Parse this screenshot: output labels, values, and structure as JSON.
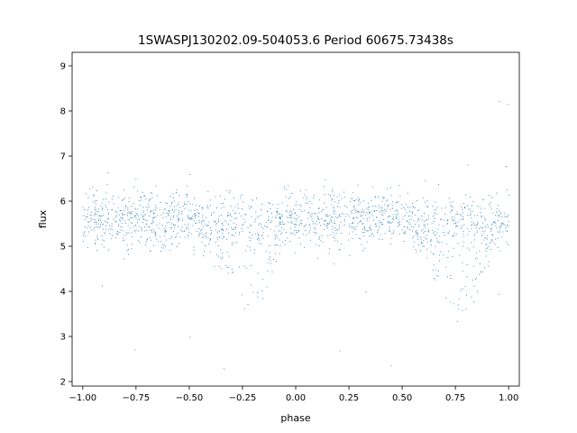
{
  "chart_data": {
    "type": "scatter",
    "title": "1SWASPJ130202.09-504053.6 Period 60675.73438s",
    "xlabel": "phase",
    "ylabel": "flux",
    "xlim": [
      -1.05,
      1.05
    ],
    "ylim": [
      1.9,
      9.3
    ],
    "xticks": [
      -1.0,
      -0.75,
      -0.5,
      -0.25,
      0.0,
      0.25,
      0.5,
      0.75,
      1.0
    ],
    "xtick_labels": [
      "−1.00",
      "−0.75",
      "−0.50",
      "−0.25",
      "0.00",
      "0.25",
      "0.50",
      "0.75",
      "1.00"
    ],
    "yticks": [
      2,
      3,
      4,
      5,
      6,
      7,
      8,
      9
    ],
    "ytick_labels": [
      "2",
      "3",
      "4",
      "5",
      "6",
      "7",
      "8",
      "9"
    ],
    "grid": false,
    "marker_color": "#1f77b4",
    "series": [
      {
        "description_of_distribution": "dense band of flux ~4.6-6.6 across full phase range; dips down to ~3.5 near phase -0.22 and 0.78",
        "x": [
          -1.0,
          -0.95,
          -0.9,
          -0.85,
          -0.8,
          -0.75,
          -0.7,
          -0.65,
          -0.6,
          -0.55,
          -0.5,
          -0.45,
          -0.4,
          -0.35,
          -0.3,
          -0.25,
          -0.22,
          -0.2,
          -0.15,
          -0.1,
          -0.05,
          0.0,
          0.05,
          0.1,
          0.15,
          0.2,
          0.25,
          0.3,
          0.35,
          0.4,
          0.45,
          0.5,
          0.55,
          0.6,
          0.65,
          0.7,
          0.75,
          0.78,
          0.8,
          0.85,
          0.9,
          0.95,
          1.0
        ],
        "y": [
          5.6,
          5.6,
          5.6,
          5.6,
          5.6,
          5.6,
          5.6,
          5.6,
          5.6,
          5.6,
          5.5,
          5.4,
          5.3,
          5.1,
          4.9,
          4.7,
          4.6,
          4.7,
          4.9,
          5.2,
          5.4,
          5.6,
          5.6,
          5.6,
          5.6,
          5.6,
          5.6,
          5.6,
          5.6,
          5.6,
          5.6,
          5.5,
          5.4,
          5.3,
          5.1,
          4.9,
          4.7,
          4.6,
          4.7,
          4.9,
          5.2,
          5.4,
          5.6
        ]
      }
    ]
  }
}
